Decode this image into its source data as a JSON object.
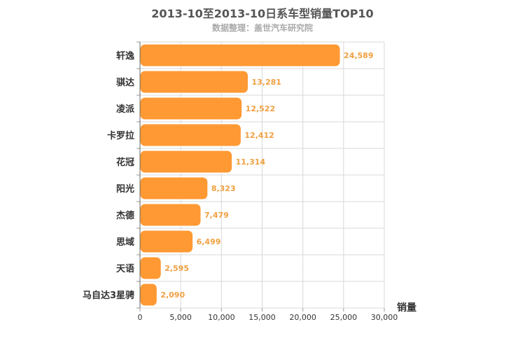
{
  "chart_data": {
    "type": "bar",
    "orientation": "horizontal",
    "title": "2013-10至2013-10日系车型销量TOP10",
    "subtitle": "数据整理：盖世汽车研究院",
    "xlabel": "销量",
    "ylabel": "",
    "categories": [
      "轩逸",
      "骐达",
      "凌派",
      "卡罗拉",
      "花冠",
      "阳光",
      "杰德",
      "思域",
      "天语",
      "马自达3星骋"
    ],
    "values": [
      24589,
      13281,
      12522,
      12412,
      11314,
      8323,
      7479,
      6499,
      2595,
      2090
    ],
    "value_labels": [
      "24,589",
      "13,281",
      "12,522",
      "12,412",
      "11,314",
      "8,323",
      "7,479",
      "6,499",
      "2,595",
      "2,090"
    ],
    "xlim": [
      0,
      30000
    ],
    "ticks": [
      0,
      5000,
      10000,
      15000,
      20000,
      25000,
      30000
    ],
    "tick_labels": [
      "0",
      "5,000",
      "10,000",
      "15,000",
      "20,000",
      "25,000",
      "30,000"
    ],
    "grid": true,
    "legend": "none",
    "bar_color": "#ff9933",
    "label_color": "#f0a040"
  }
}
